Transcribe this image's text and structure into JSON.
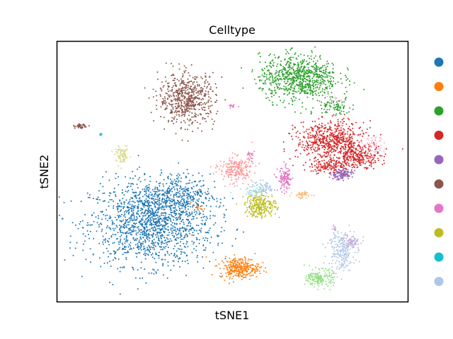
{
  "chart_data": {
    "type": "scatter",
    "title": "Celltype",
    "xlabel": "tSNE1",
    "ylabel": "tSNE2",
    "grid": false,
    "ticks": false,
    "legend_placement": "right",
    "colors": [
      "#1f77b4",
      "#ff7f0e",
      "#2ca02c",
      "#d62728",
      "#9467bd",
      "#8c564b",
      "#e377c2",
      "#bcbd22",
      "#17becf",
      "#aec7e8"
    ],
    "extra_colors": [
      "#ffbb78",
      "#98df8a",
      "#ff9896",
      "#c5b0d5",
      "#c49c94",
      "#f7b6d2",
      "#dbdb8d",
      "#9edae5"
    ],
    "xlim": [
      0,
      100
    ],
    "ylim": [
      0,
      100
    ],
    "clusters": [
      {
        "color": "#1f77b4",
        "cx": 27,
        "cy": 30,
        "sx": 11,
        "sy": 10,
        "n": 1500
      },
      {
        "color": "#1f77b4",
        "cx": 34,
        "cy": 41,
        "sx": 6,
        "sy": 5,
        "n": 300
      },
      {
        "color": "#ff7f0e",
        "cx": 52,
        "cy": 13,
        "sx": 3.5,
        "sy": 2.5,
        "n": 300
      },
      {
        "color": "#ff7f0e",
        "cx": 40,
        "cy": 36,
        "sx": 1.2,
        "sy": 0.8,
        "n": 12
      },
      {
        "color": "#2ca02c",
        "cx": 69,
        "cy": 86,
        "sx": 7,
        "sy": 5.5,
        "n": 800
      },
      {
        "color": "#2ca02c",
        "cx": 79,
        "cy": 75,
        "sx": 3,
        "sy": 2,
        "n": 80
      },
      {
        "color": "#d62728",
        "cx": 78,
        "cy": 62,
        "sx": 6,
        "sy": 4.5,
        "n": 600
      },
      {
        "color": "#d62728",
        "cx": 86,
        "cy": 56,
        "sx": 4,
        "sy": 2.5,
        "n": 250
      },
      {
        "color": "#d62728",
        "cx": 78,
        "cy": 52,
        "sx": 4,
        "sy": 2,
        "n": 150
      },
      {
        "color": "#9467bd",
        "cx": 81,
        "cy": 49,
        "sx": 2,
        "sy": 1.3,
        "n": 120
      },
      {
        "color": "#8c564b",
        "cx": 37,
        "cy": 78,
        "sx": 5,
        "sy": 6,
        "n": 600
      },
      {
        "color": "#8c564b",
        "cx": 6.5,
        "cy": 67.5,
        "sx": 0.9,
        "sy": 0.5,
        "n": 45
      },
      {
        "color": "#e377c2",
        "cx": 65,
        "cy": 47,
        "sx": 1.3,
        "sy": 3,
        "n": 120
      },
      {
        "color": "#e377c2",
        "cx": 55,
        "cy": 56,
        "sx": 0.8,
        "sy": 1.6,
        "n": 20
      },
      {
        "color": "#e377c2",
        "cx": 50,
        "cy": 75,
        "sx": 0.6,
        "sy": 0.6,
        "n": 12
      },
      {
        "color": "#bcbd22",
        "cx": 58,
        "cy": 37,
        "sx": 2.8,
        "sy": 2.8,
        "n": 250
      },
      {
        "color": "#dbdb8d",
        "cx": 18.5,
        "cy": 56,
        "sx": 1.2,
        "sy": 2,
        "n": 80
      },
      {
        "color": "#17becf",
        "cx": 12.5,
        "cy": 64.5,
        "sx": 0.3,
        "sy": 0.3,
        "n": 5
      },
      {
        "color": "#9edae5",
        "cx": 57,
        "cy": 43,
        "sx": 3,
        "sy": 1.5,
        "n": 60
      },
      {
        "color": "#aec7e8",
        "cx": 81,
        "cy": 20,
        "sx": 2.4,
        "sy": 5,
        "n": 220
      },
      {
        "color": "#aec7e8",
        "cx": 59,
        "cy": 44,
        "sx": 2,
        "sy": 1.5,
        "n": 40
      },
      {
        "color": "#98df8a",
        "cx": 75,
        "cy": 9,
        "sx": 2.4,
        "sy": 2,
        "n": 180
      },
      {
        "color": "#ff9896",
        "cx": 51,
        "cy": 51,
        "sx": 3,
        "sy": 3,
        "n": 220
      },
      {
        "color": "#ffbb78",
        "cx": 70,
        "cy": 41,
        "sx": 1.6,
        "sy": 0.9,
        "n": 50
      },
      {
        "color": "#c5b0d5",
        "cx": 84,
        "cy": 23,
        "sx": 1.5,
        "sy": 1.3,
        "n": 60
      },
      {
        "color": "#c5b0d5",
        "cx": 79,
        "cy": 28,
        "sx": 0.7,
        "sy": 0.7,
        "n": 10
      },
      {
        "color": "#f7b6d2",
        "cx": 90,
        "cy": 60,
        "sx": 2.2,
        "sy": 2.2,
        "n": 50
      },
      {
        "color": "#f7b6d2",
        "cx": 80,
        "cy": 78,
        "sx": 1.5,
        "sy": 1,
        "n": 12
      }
    ]
  }
}
